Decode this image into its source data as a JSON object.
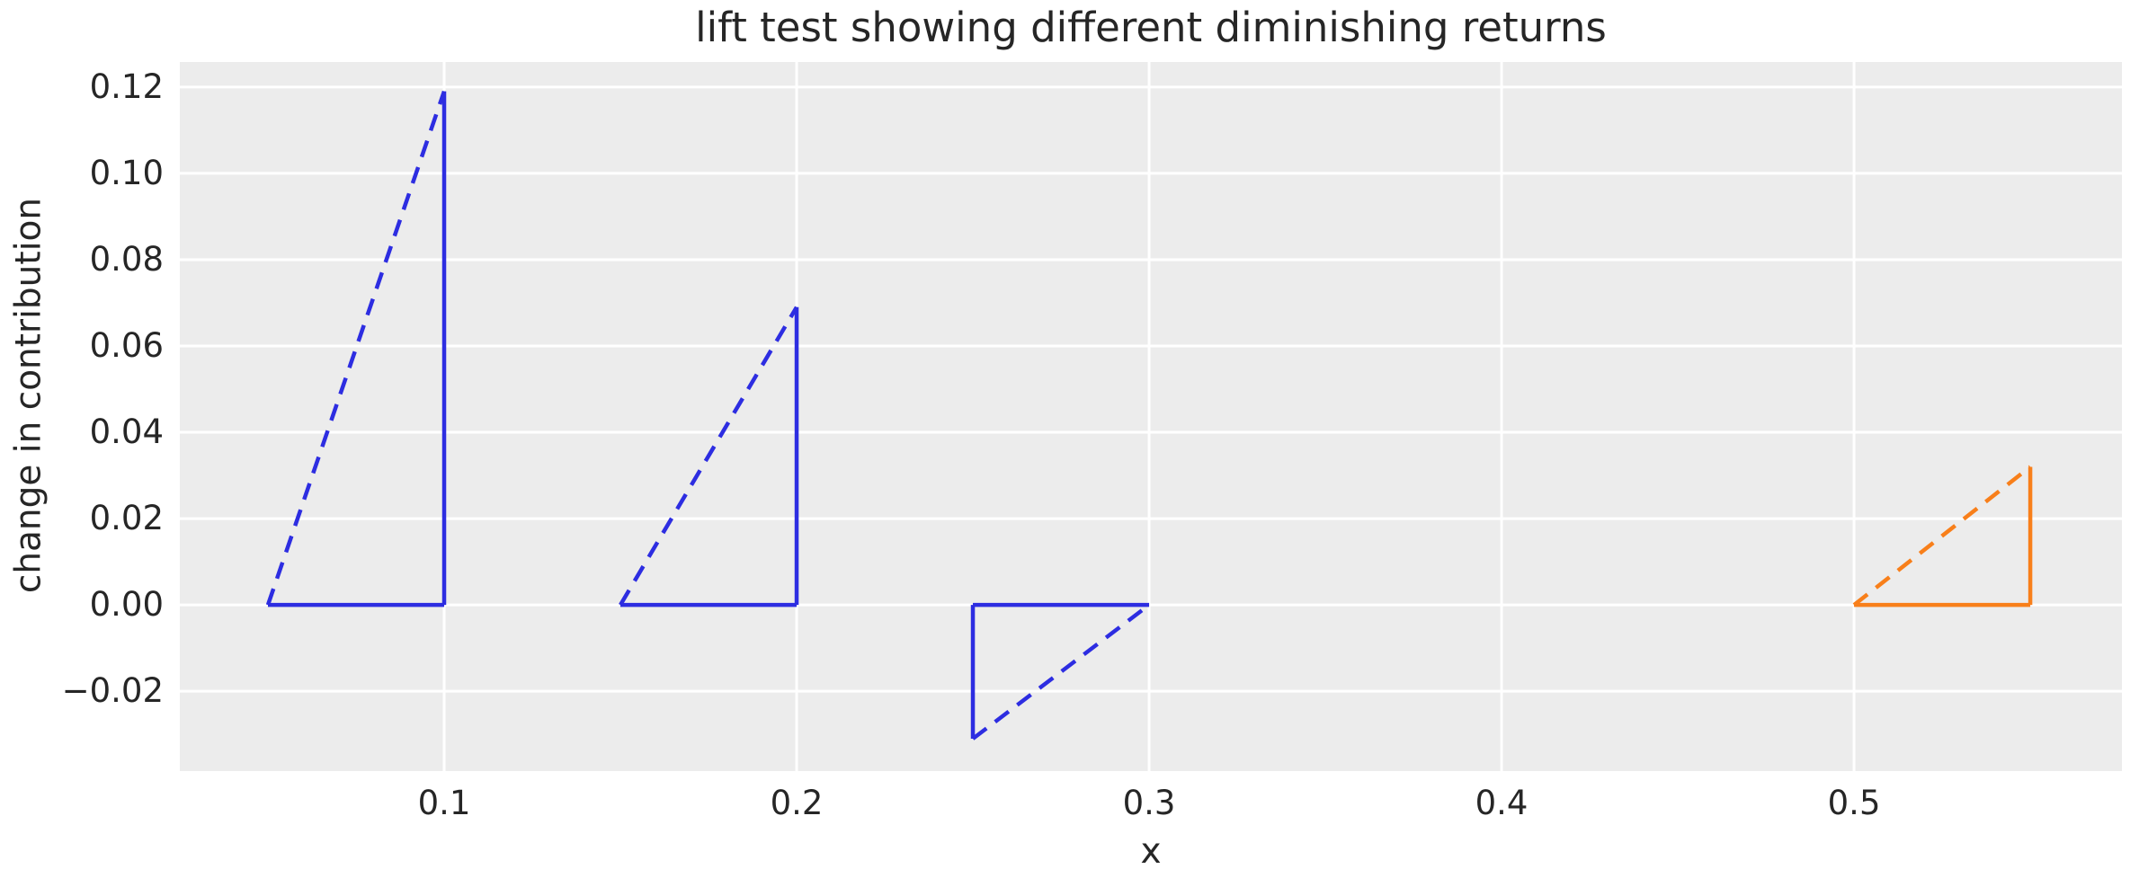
{
  "figure": {
    "background_color": "#ffffff",
    "text_color": "#262626"
  },
  "chart_data": {
    "type": "line",
    "title": "lift test showing different diminishing returns",
    "xlabel": "x",
    "ylabel": "change in contribution",
    "xlim": [
      0.025,
      0.576
    ],
    "ylim": [
      -0.0385,
      0.1258
    ],
    "grid": true,
    "grid_color": "#ffffff",
    "plot_background": "#ececec",
    "legend_position": "none",
    "x_ticks": [
      {
        "value": 0.1,
        "label": "0.1"
      },
      {
        "value": 0.2,
        "label": "0.2"
      },
      {
        "value": 0.3,
        "label": "0.3"
      },
      {
        "value": 0.4,
        "label": "0.4"
      },
      {
        "value": 0.5,
        "label": "0.5"
      }
    ],
    "y_ticks": [
      {
        "value": 0.12,
        "label": "0.12"
      },
      {
        "value": 0.1,
        "label": "0.10"
      },
      {
        "value": 0.08,
        "label": "0.08"
      },
      {
        "value": 0.06,
        "label": "0.06"
      },
      {
        "value": 0.04,
        "label": "0.04"
      },
      {
        "value": 0.02,
        "label": "0.02"
      },
      {
        "value": 0.0,
        "label": "0.00"
      },
      {
        "value": -0.02,
        "label": "−0.02"
      }
    ],
    "triangles": [
      {
        "name": "lift-triangle-1",
        "color": "#2d2de1",
        "dash_start": {
          "x": 0.05,
          "y": 0.0
        },
        "tip": {
          "x": 0.1,
          "y": 0.119
        },
        "corner": {
          "x": 0.1,
          "y": 0.0
        }
      },
      {
        "name": "lift-triangle-2",
        "color": "#2d2de1",
        "dash_start": {
          "x": 0.15,
          "y": 0.0
        },
        "tip": {
          "x": 0.2,
          "y": 0.069
        },
        "corner": {
          "x": 0.2,
          "y": 0.0
        }
      },
      {
        "name": "lift-triangle-3",
        "color": "#2d2de1",
        "dash_start": {
          "x": 0.25,
          "y": -0.031
        },
        "tip": {
          "x": 0.3,
          "y": 0.0
        },
        "corner": {
          "x": 0.25,
          "y": 0.0
        }
      },
      {
        "name": "lift-triangle-4",
        "color": "#f87f1a",
        "dash_start": {
          "x": 0.5,
          "y": 0.0
        },
        "tip": {
          "x": 0.55,
          "y": 0.032
        },
        "corner": {
          "x": 0.55,
          "y": 0.0
        }
      }
    ]
  }
}
